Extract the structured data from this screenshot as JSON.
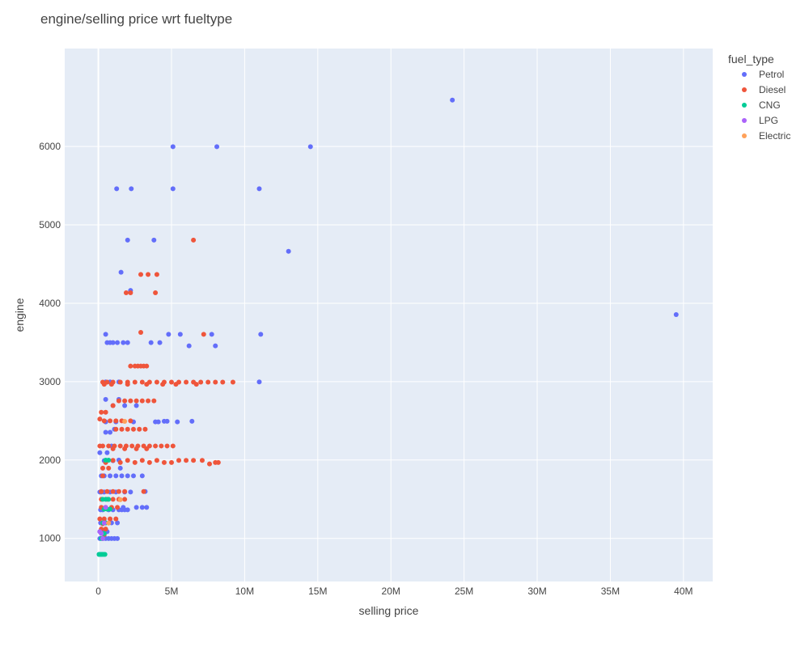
{
  "chart_data": {
    "type": "scatter",
    "title": "engine/selling price wrt fueltype",
    "xlabel": "selling price",
    "ylabel": "engine",
    "xlim": [
      -2300000,
      42000000
    ],
    "ylim": [
      450,
      7250
    ],
    "x_ticks": [
      0,
      5000000,
      10000000,
      15000000,
      20000000,
      25000000,
      30000000,
      35000000,
      40000000
    ],
    "x_tick_labels": [
      "0",
      "5M",
      "10M",
      "15M",
      "20M",
      "25M",
      "30M",
      "35M",
      "40M"
    ],
    "y_ticks": [
      1000,
      2000,
      3000,
      4000,
      5000,
      6000
    ],
    "y_tick_labels": [
      "1000",
      "2000",
      "3000",
      "4000",
      "5000",
      "6000"
    ],
    "grid": true,
    "legend_title": "fuel_type",
    "legend_position": "right",
    "plot_bg": "#e5ecf6",
    "series": [
      {
        "name": "Petrol",
        "color": "#636efa",
        "points": [
          [
            24200000,
            6592
          ],
          [
            39500000,
            3855
          ],
          [
            14500000,
            5998
          ],
          [
            8100000,
            5998
          ],
          [
            5100000,
            5998
          ],
          [
            11000000,
            5461
          ],
          [
            5100000,
            5461
          ],
          [
            2250000,
            5461
          ],
          [
            1250000,
            5461
          ],
          [
            13000000,
            4663
          ],
          [
            3800000,
            4806
          ],
          [
            2000000,
            4806
          ],
          [
            1550000,
            4395
          ],
          [
            2200000,
            4163
          ],
          [
            11100000,
            3604
          ],
          [
            7750000,
            3604
          ],
          [
            8000000,
            3456
          ],
          [
            6200000,
            3456
          ],
          [
            5600000,
            3604
          ],
          [
            4800000,
            3604
          ],
          [
            4200000,
            3498
          ],
          [
            3600000,
            3498
          ],
          [
            2000000,
            3498
          ],
          [
            1700000,
            3498
          ],
          [
            1300000,
            3498
          ],
          [
            1000000,
            3498
          ],
          [
            800000,
            3498
          ],
          [
            600000,
            3498
          ],
          [
            500000,
            3604
          ],
          [
            11000000,
            2996
          ],
          [
            1400000,
            2996
          ],
          [
            800000,
            2996
          ],
          [
            500000,
            2996
          ],
          [
            1400000,
            2773
          ],
          [
            500000,
            2773
          ],
          [
            6400000,
            2494
          ],
          [
            4700000,
            2494
          ],
          [
            4500000,
            2494
          ],
          [
            5400000,
            2487
          ],
          [
            3900000,
            2487
          ],
          [
            4100000,
            2487
          ],
          [
            2400000,
            2487
          ],
          [
            1200000,
            2487
          ],
          [
            500000,
            2487
          ],
          [
            2600000,
            2694
          ],
          [
            1800000,
            2694
          ],
          [
            1000000,
            2694
          ],
          [
            1100000,
            2393
          ],
          [
            800000,
            2354
          ],
          [
            500000,
            2354
          ],
          [
            900000,
            2179
          ],
          [
            600000,
            2093
          ],
          [
            100000,
            2093
          ],
          [
            400000,
            1991
          ],
          [
            1000000,
            1991
          ],
          [
            1400000,
            1999
          ],
          [
            3000000,
            1798
          ],
          [
            2400000,
            1798
          ],
          [
            2000000,
            1798
          ],
          [
            1600000,
            1798
          ],
          [
            1200000,
            1798
          ],
          [
            800000,
            1798
          ],
          [
            400000,
            1798
          ],
          [
            200000,
            1798
          ],
          [
            1500000,
            1896
          ],
          [
            2200000,
            1591
          ],
          [
            1800000,
            1591
          ],
          [
            1200000,
            1591
          ],
          [
            800000,
            1591
          ],
          [
            400000,
            1591
          ],
          [
            200000,
            1591
          ],
          [
            100000,
            1591
          ],
          [
            3200000,
            1598
          ],
          [
            3300000,
            1395
          ],
          [
            3000000,
            1395
          ],
          [
            2600000,
            1395
          ],
          [
            2000000,
            1364
          ],
          [
            1800000,
            1364
          ],
          [
            1600000,
            1364
          ],
          [
            1400000,
            1364
          ],
          [
            1000000,
            1364
          ],
          [
            700000,
            1364
          ],
          [
            300000,
            1364
          ],
          [
            150000,
            1364
          ],
          [
            1700000,
            1396
          ],
          [
            1300000,
            1198
          ],
          [
            900000,
            1198
          ],
          [
            500000,
            1198
          ],
          [
            300000,
            1198
          ],
          [
            150000,
            1198
          ],
          [
            1300000,
            998
          ],
          [
            1100000,
            998
          ],
          [
            900000,
            998
          ],
          [
            700000,
            998
          ],
          [
            500000,
            998
          ],
          [
            300000,
            998
          ],
          [
            100000,
            998
          ],
          [
            600000,
            1086
          ],
          [
            300000,
            1086
          ],
          [
            100000,
            1086
          ],
          [
            200000,
            796
          ],
          [
            50000,
            796
          ]
        ]
      },
      {
        "name": "Diesel",
        "color": "#ef553b",
        "points": [
          [
            6500000,
            4806
          ],
          [
            2900000,
            4367
          ],
          [
            3400000,
            4367
          ],
          [
            4000000,
            4367
          ],
          [
            1900000,
            4134
          ],
          [
            2200000,
            4134
          ],
          [
            3900000,
            4134
          ],
          [
            2900000,
            3628
          ],
          [
            7200000,
            3604
          ],
          [
            3300000,
            3198
          ],
          [
            3100000,
            3198
          ],
          [
            2900000,
            3198
          ],
          [
            2700000,
            3198
          ],
          [
            2500000,
            3198
          ],
          [
            2200000,
            3198
          ],
          [
            9200000,
            2993
          ],
          [
            8500000,
            2993
          ],
          [
            8000000,
            2993
          ],
          [
            7500000,
            2993
          ],
          [
            7000000,
            2993
          ],
          [
            6500000,
            2993
          ],
          [
            6000000,
            2993
          ],
          [
            5500000,
            2993
          ],
          [
            5000000,
            2993
          ],
          [
            4500000,
            2993
          ],
          [
            4000000,
            2993
          ],
          [
            3500000,
            2993
          ],
          [
            3000000,
            2993
          ],
          [
            2500000,
            2993
          ],
          [
            2000000,
            2993
          ],
          [
            1500000,
            2993
          ],
          [
            1000000,
            2993
          ],
          [
            600000,
            2993
          ],
          [
            300000,
            2993
          ],
          [
            6700000,
            2967
          ],
          [
            5300000,
            2967
          ],
          [
            4400000,
            2967
          ],
          [
            3300000,
            2967
          ],
          [
            2000000,
            2967
          ],
          [
            900000,
            2967
          ],
          [
            400000,
            2967
          ],
          [
            3800000,
            2755
          ],
          [
            3400000,
            2755
          ],
          [
            3000000,
            2755
          ],
          [
            2600000,
            2755
          ],
          [
            2200000,
            2755
          ],
          [
            1800000,
            2755
          ],
          [
            1400000,
            2755
          ],
          [
            1000000,
            2694
          ],
          [
            500000,
            2609
          ],
          [
            200000,
            2609
          ],
          [
            2200000,
            2499
          ],
          [
            1600000,
            2499
          ],
          [
            1200000,
            2499
          ],
          [
            800000,
            2499
          ],
          [
            400000,
            2499
          ],
          [
            100000,
            2523
          ],
          [
            3200000,
            2393
          ],
          [
            2800000,
            2393
          ],
          [
            2400000,
            2393
          ],
          [
            2000000,
            2393
          ],
          [
            1600000,
            2393
          ],
          [
            1200000,
            2393
          ],
          [
            5100000,
            2179
          ],
          [
            4700000,
            2179
          ],
          [
            4300000,
            2179
          ],
          [
            3900000,
            2179
          ],
          [
            3500000,
            2179
          ],
          [
            3100000,
            2179
          ],
          [
            2700000,
            2179
          ],
          [
            2300000,
            2179
          ],
          [
            1900000,
            2179
          ],
          [
            1500000,
            2179
          ],
          [
            1100000,
            2179
          ],
          [
            700000,
            2179
          ],
          [
            300000,
            2179
          ],
          [
            100000,
            2179
          ],
          [
            3300000,
            2143
          ],
          [
            2600000,
            2143
          ],
          [
            1800000,
            2143
          ],
          [
            1000000,
            2143
          ],
          [
            8200000,
            1968
          ],
          [
            7600000,
            1950
          ],
          [
            7100000,
            1995
          ],
          [
            6500000,
            1995
          ],
          [
            6000000,
            1995
          ],
          [
            5500000,
            1995
          ],
          [
            5000000,
            1968
          ],
          [
            4500000,
            1968
          ],
          [
            4000000,
            1995
          ],
          [
            3500000,
            1968
          ],
          [
            3000000,
            1995
          ],
          [
            2500000,
            1968
          ],
          [
            2000000,
            1995
          ],
          [
            1500000,
            1968
          ],
          [
            1000000,
            1995
          ],
          [
            500000,
            1968
          ],
          [
            8000000,
            1968
          ],
          [
            300000,
            1896
          ],
          [
            700000,
            1896
          ],
          [
            300000,
            1798
          ],
          [
            3100000,
            1598
          ],
          [
            1800000,
            1598
          ],
          [
            1400000,
            1598
          ],
          [
            1000000,
            1598
          ],
          [
            600000,
            1598
          ],
          [
            200000,
            1598
          ],
          [
            1800000,
            1498
          ],
          [
            1400000,
            1498
          ],
          [
            1000000,
            1498
          ],
          [
            600000,
            1498
          ],
          [
            200000,
            1498
          ],
          [
            1300000,
            1396
          ],
          [
            900000,
            1396
          ],
          [
            500000,
            1396
          ],
          [
            200000,
            1396
          ],
          [
            1200000,
            1248
          ],
          [
            800000,
            1248
          ],
          [
            400000,
            1248
          ],
          [
            100000,
            1248
          ],
          [
            500000,
            1120
          ],
          [
            200000,
            1120
          ],
          [
            400000,
            1047
          ],
          [
            300000,
            1186
          ]
        ]
      },
      {
        "name": "CNG",
        "color": "#00cc96",
        "points": [
          [
            500000,
            1998
          ],
          [
            700000,
            1998
          ],
          [
            300000,
            1498
          ],
          [
            500000,
            1498
          ],
          [
            700000,
            1498
          ],
          [
            400000,
            1373
          ],
          [
            600000,
            1373
          ],
          [
            800000,
            1373
          ],
          [
            300000,
            1197
          ],
          [
            500000,
            1197
          ],
          [
            300000,
            998
          ],
          [
            200000,
            998
          ],
          [
            400000,
            1061
          ],
          [
            50000,
            796
          ],
          [
            150000,
            796
          ],
          [
            250000,
            796
          ],
          [
            350000,
            796
          ],
          [
            450000,
            796
          ]
        ]
      },
      {
        "name": "LPG",
        "color": "#ab63fa",
        "points": [
          [
            200000,
            1061
          ],
          [
            300000,
            998
          ],
          [
            100000,
            1086
          ],
          [
            400000,
            1197
          ],
          [
            500000,
            1396
          ]
        ]
      },
      {
        "name": "Electric",
        "color": "#ffa15a",
        "points": [
          [
            1800000,
            2493
          ],
          [
            1500000,
            1493
          ],
          [
            700000,
            1196
          ]
        ]
      }
    ]
  }
}
